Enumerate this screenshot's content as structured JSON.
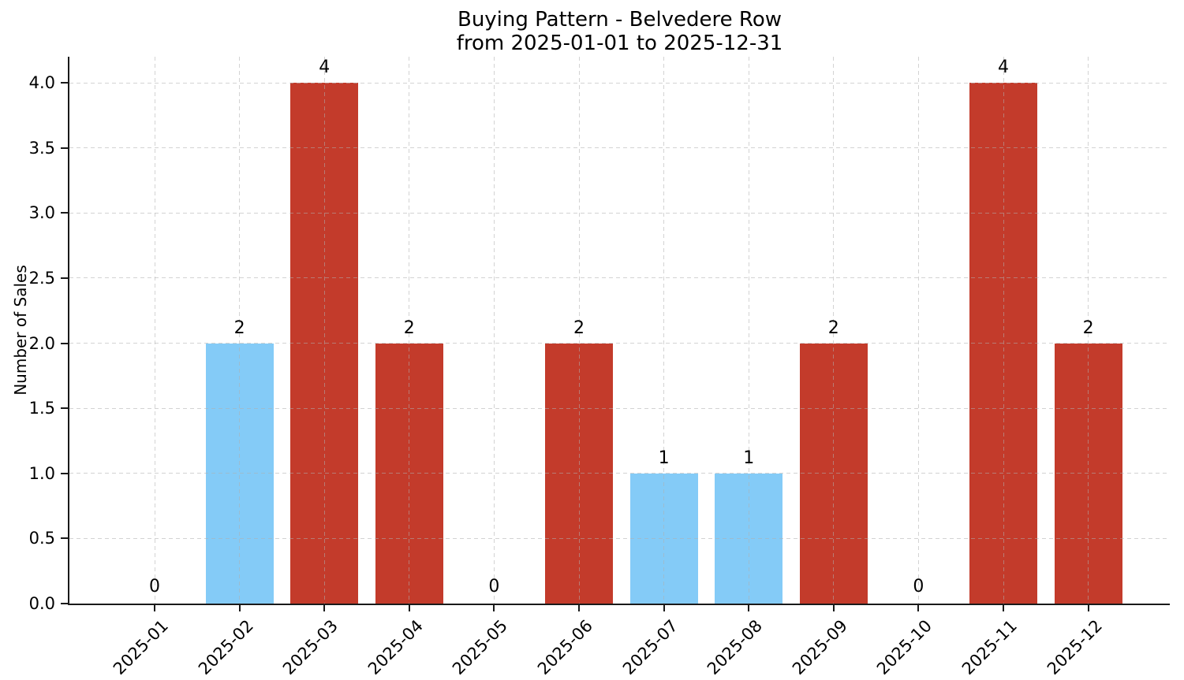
{
  "chart_data": {
    "type": "bar",
    "title": "Buying Pattern - Belvedere Row from 2025-01-01 to 2025-12-31",
    "title_lines": [
      "Buying Pattern - Belvedere Row",
      "from 2025-01-01 to 2025-12-31"
    ],
    "xlabel": "",
    "ylabel": "Number of Sales",
    "categories": [
      "2025-01",
      "2025-02",
      "2025-03",
      "2025-04",
      "2025-05",
      "2025-06",
      "2025-07",
      "2025-08",
      "2025-09",
      "2025-10",
      "2025-11",
      "2025-12"
    ],
    "values": [
      0,
      2,
      4,
      2,
      0,
      2,
      1,
      1,
      2,
      0,
      4,
      2
    ],
    "bar_labels": [
      "0",
      "2",
      "4",
      "2",
      "0",
      "2",
      "1",
      "1",
      "2",
      "0",
      "4",
      "2"
    ],
    "bar_colors": [
      null,
      "#84cbf7",
      "#c33b2b",
      "#c33b2b",
      null,
      "#c33b2b",
      "#84cbf7",
      "#84cbf7",
      "#c33b2b",
      null,
      "#c33b2b",
      "#c33b2b"
    ],
    "ytick_labels": [
      "0.0",
      "0.5",
      "1.0",
      "1.5",
      "2.0",
      "2.5",
      "3.0",
      "3.5",
      "4.0"
    ],
    "ytick_values": [
      0,
      0.5,
      1,
      1.5,
      2,
      2.5,
      3,
      3.5,
      4
    ],
    "ylim": [
      0,
      4.2
    ],
    "grid": true,
    "grid_style": "dashed",
    "legend": null,
    "colors": {
      "bar_red": "#c33b2b",
      "bar_blue": "#84cbf7",
      "grid": "#afafaf",
      "axis": "#1a1a1a",
      "text": "#000000",
      "background": "#ffffff"
    }
  }
}
